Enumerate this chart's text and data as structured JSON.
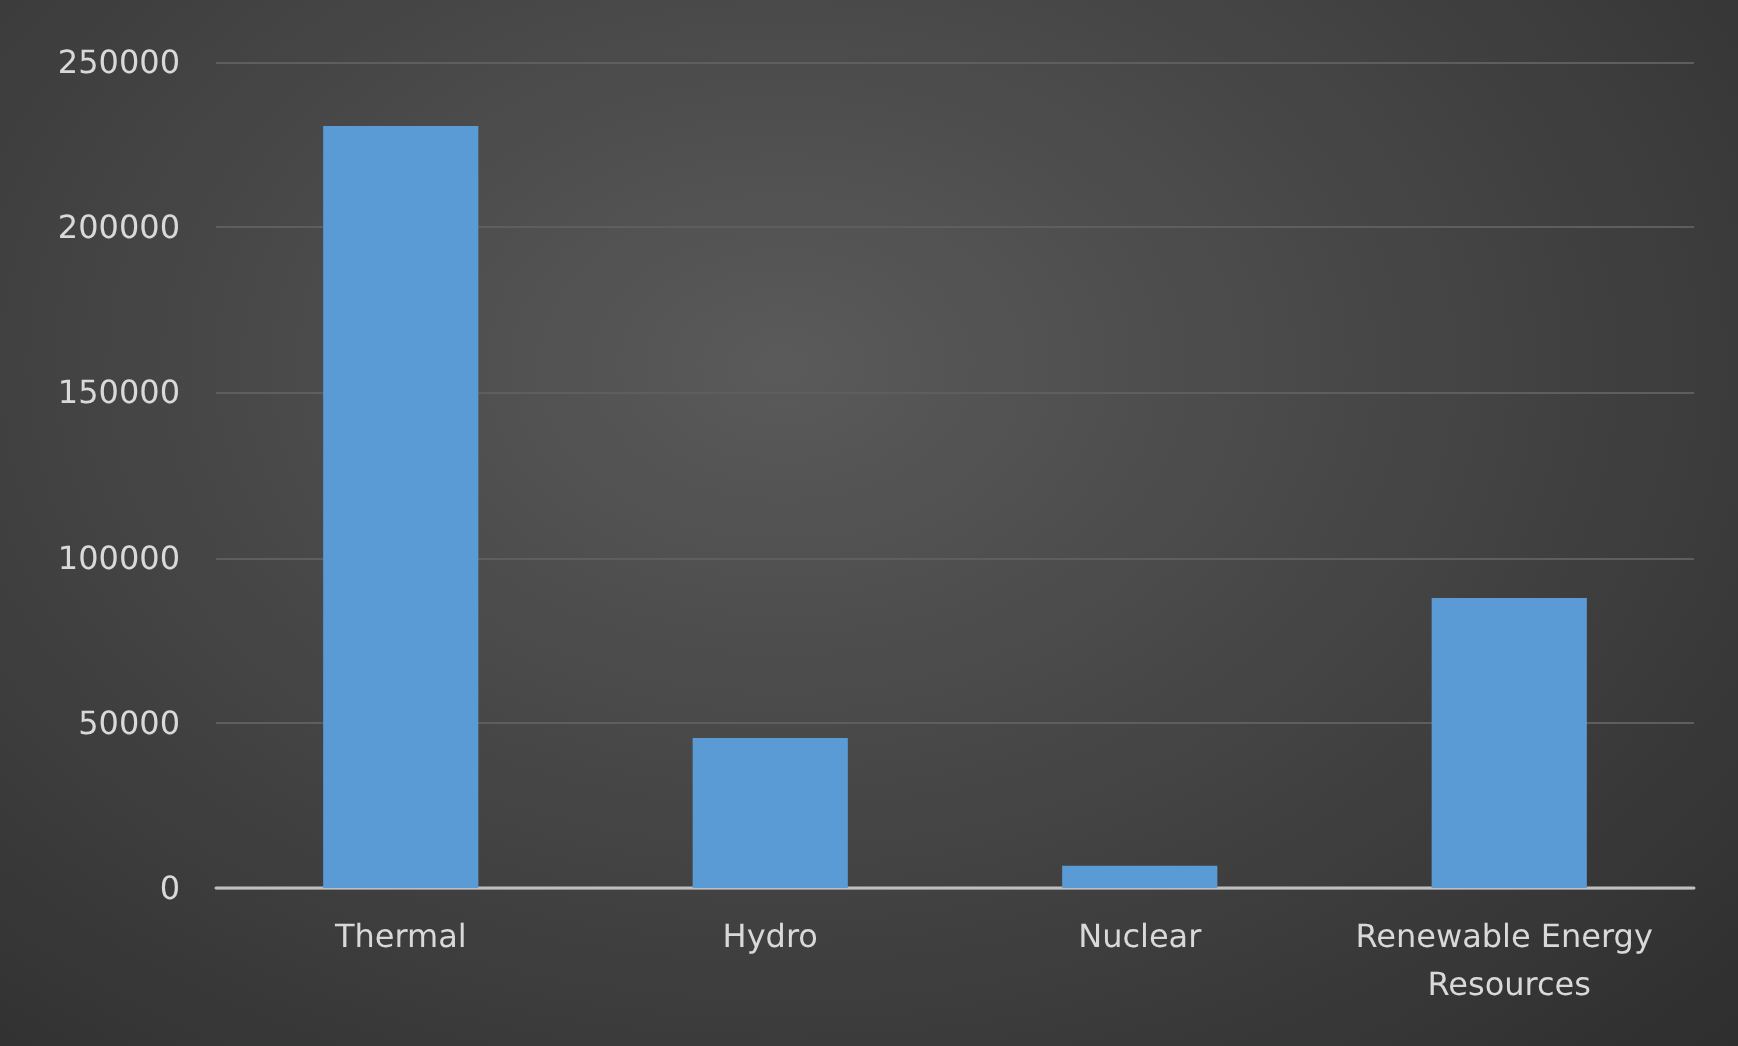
{
  "chart_data": {
    "type": "bar",
    "categories": [
      "Thermal",
      "Hydro",
      "Nuclear",
      "Renewable Energy Resources"
    ],
    "values": [
      230600,
      45400,
      6700,
      87800
    ],
    "color": "#5b9bd5",
    "ylim": [
      0,
      250000
    ],
    "yticks": [
      0,
      50000,
      100000,
      150000,
      200000,
      250000
    ],
    "grid": "y"
  }
}
